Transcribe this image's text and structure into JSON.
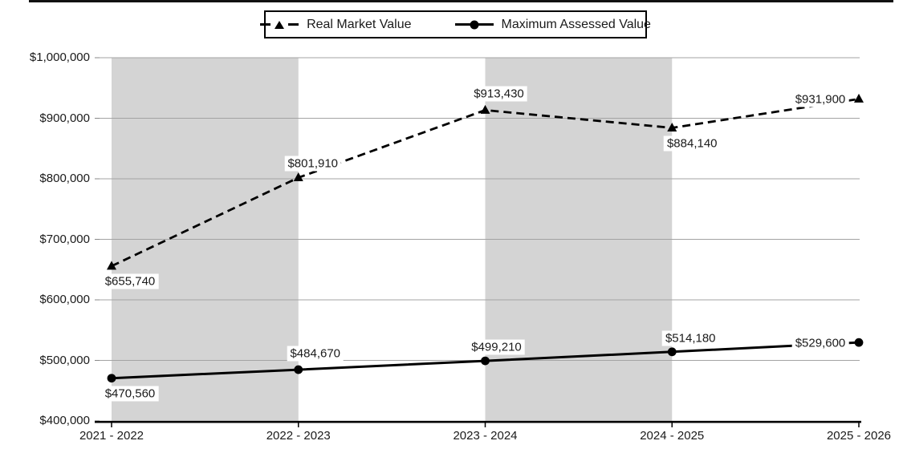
{
  "chart_data": {
    "type": "line",
    "title": "",
    "xlabel": "",
    "ylabel": "",
    "categories": [
      "2021 - 2022",
      "2022 - 2023",
      "2023 - 2024",
      "2024 - 2025",
      "2025 - 2026"
    ],
    "series": [
      {
        "name": "Real Market Value",
        "marker": "triangle",
        "line_style": "dashed",
        "color": "#000000",
        "values": [
          655740,
          801910,
          913430,
          884140,
          931900
        ],
        "labels": [
          "$655,740",
          "$801,910",
          "$913,430",
          "$884,140",
          "$931,900"
        ],
        "label_offsets": [
          [
            23,
            19
          ],
          [
            18,
            -18
          ],
          [
            17,
            -20
          ],
          [
            25,
            20
          ],
          [
            -48,
            1
          ]
        ]
      },
      {
        "name": "Maximum Assessed Value",
        "marker": "circle",
        "line_style": "solid",
        "color": "#000000",
        "values": [
          470560,
          484670,
          499210,
          514180,
          529600
        ],
        "labels": [
          "$470,560",
          "$484,670",
          "$499,210",
          "$514,180",
          "$529,600"
        ],
        "label_offsets": [
          [
            23,
            19
          ],
          [
            21,
            -20
          ],
          [
            14,
            -17
          ],
          [
            23,
            -17
          ],
          [
            -48,
            1
          ]
        ]
      }
    ],
    "y_axis": {
      "min": 400000,
      "max": 1000000,
      "step": 100000,
      "tick_labels": [
        "$400,000",
        "$500,000",
        "$600,000",
        "$700,000",
        "$800,000",
        "$900,000",
        "$1,000,000"
      ]
    },
    "grid": true,
    "legend_position": "top",
    "band_color": "#d4d4d4",
    "gridline_color": "#a3a3a3",
    "axis_color": "#000000",
    "bands_between_categories": [
      [
        0,
        1
      ],
      [
        2,
        3
      ]
    ]
  }
}
